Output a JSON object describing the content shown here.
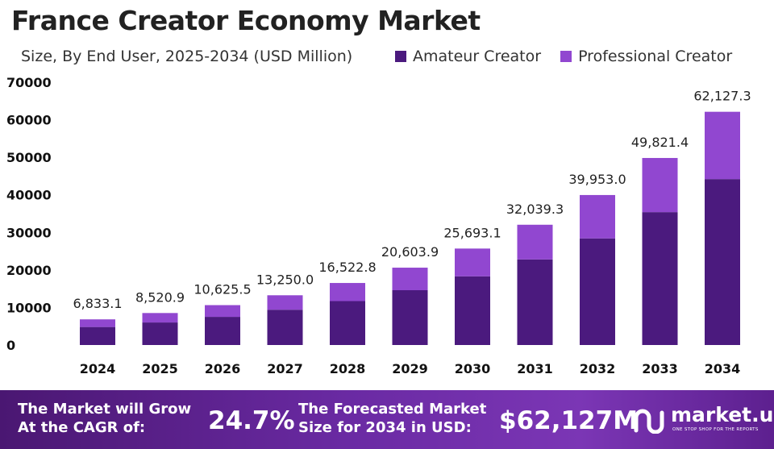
{
  "title": "France Creator Economy Market",
  "subtitle": "Size, By End User, 2025-2034 (USD Million)",
  "legend": [
    {
      "label": "Amateur Creator",
      "color": "#4b1a7e"
    },
    {
      "label": "Professional Creator",
      "color": "#9147d0"
    }
  ],
  "chart_data": {
    "type": "bar",
    "stacked": true,
    "categories": [
      "2024",
      "2025",
      "2026",
      "2027",
      "2028",
      "2029",
      "2030",
      "2031",
      "2032",
      "2033",
      "2034"
    ],
    "series": [
      {
        "name": "Amateur Creator",
        "color": "#4b1a7e",
        "values": [
          4800,
          6000,
          7500,
          9400,
          11700,
          14600,
          18300,
          22800,
          28400,
          35400,
          44200
        ]
      },
      {
        "name": "Professional Creator",
        "color": "#9147d0",
        "values": [
          2033.1,
          2520.9,
          3125.5,
          3850.0,
          4822.8,
          6003.9,
          7393.1,
          9239.3,
          11553.0,
          14421.4,
          17927.3
        ]
      }
    ],
    "totals": [
      6833.1,
      8520.9,
      10625.5,
      13250.0,
      16522.8,
      20603.9,
      25693.1,
      32039.3,
      39953.0,
      49821.4,
      62127.3
    ],
    "total_labels": [
      "6,833.1",
      "8,520.9",
      "10,625.5",
      "13,250.0",
      "16,522.8",
      "20,603.9",
      "25,693.1",
      "32,039.3",
      "39,953.0",
      "49,821.4",
      "62,127.3"
    ],
    "yticks": [
      "0",
      "10000",
      "20000",
      "30000",
      "40000",
      "50000",
      "60000",
      "70000"
    ],
    "ylim": [
      0,
      70000
    ],
    "grid": false,
    "legend_position": "top-right"
  },
  "footer": {
    "cagr_text_line1": "The Market will Grow",
    "cagr_text_line2": "At the CAGR of:",
    "cagr_value": "24.7%",
    "forecast_text_line1": "The Forecasted Market",
    "forecast_text_line2": "Size for 2034 in USD:",
    "forecast_value": "$62,127M",
    "brand_name": "market.us",
    "brand_tagline": "ONE STOP SHOP FOR THE REPORTS"
  }
}
